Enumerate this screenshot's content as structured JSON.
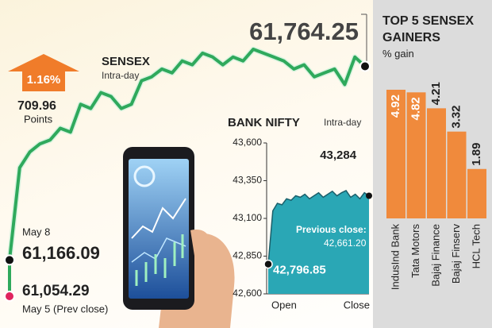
{
  "chart_data": [
    {
      "type": "line",
      "title": "SENSEX",
      "subtitle": "Intra-day",
      "color": "#2fa95c",
      "values": [
        61451,
        61500,
        61525,
        61537,
        61573,
        61561,
        61647,
        61634,
        61683,
        61671,
        61634,
        61647,
        61720,
        61732,
        61756,
        61744,
        61781,
        61769,
        61805,
        61793,
        61769,
        61793,
        61781,
        61817,
        61805,
        61793,
        61781,
        61756,
        61769,
        61732,
        61744,
        61756,
        61708,
        61793
      ],
      "prev_close": {
        "value": 61054.29,
        "label": "61,054.29",
        "text": "May 5 (Prev close)"
      },
      "open": {
        "value": 61166.09,
        "label": "61,166.09",
        "text": "May 8"
      },
      "close": {
        "value": 61764.25,
        "label": "61,764.25"
      },
      "change_percent": "1.16%",
      "change_points": 709.96,
      "change_points_text": "Points"
    },
    {
      "type": "area",
      "title": "BANK NIFTY",
      "subtitle": "Intra-day",
      "color": "#2aa7b5",
      "x_labels": [
        "Open",
        "Close"
      ],
      "ylim": [
        42600,
        43600
      ],
      "yticks": [
        {
          "value": 42600,
          "label": "42,600"
        },
        {
          "value": 42850,
          "label": "42,850"
        },
        {
          "value": 43100,
          "label": "43,100"
        },
        {
          "value": 43350,
          "label": "43,350"
        },
        {
          "value": 43600,
          "label": "43,600"
        }
      ],
      "values": [
        42796.85,
        43150,
        43200,
        43190,
        43230,
        43220,
        43250,
        43240,
        43260,
        43230,
        43250,
        43270,
        43240,
        43260,
        43280,
        43250,
        43270,
        43284,
        43240,
        43260,
        43230,
        43270,
        43250
      ],
      "low": {
        "value": 42796.85,
        "label": "42,796.85"
      },
      "high": {
        "value": 43284,
        "label": "43,284"
      },
      "previous_close_text": "Previous close:",
      "previous_close_label": "42,661.20"
    },
    {
      "type": "bar",
      "title": "TOP 5 SENSEX GAINERS",
      "subtitle": "% gain",
      "color": "#f08a3c",
      "categories": [
        "IndusInd Bank",
        "Tata Motors",
        "Bajaj Finance",
        "Bajaj Finserv",
        "HCL Tech"
      ],
      "values": [
        4.92,
        4.82,
        4.21,
        3.32,
        1.89
      ]
    }
  ]
}
